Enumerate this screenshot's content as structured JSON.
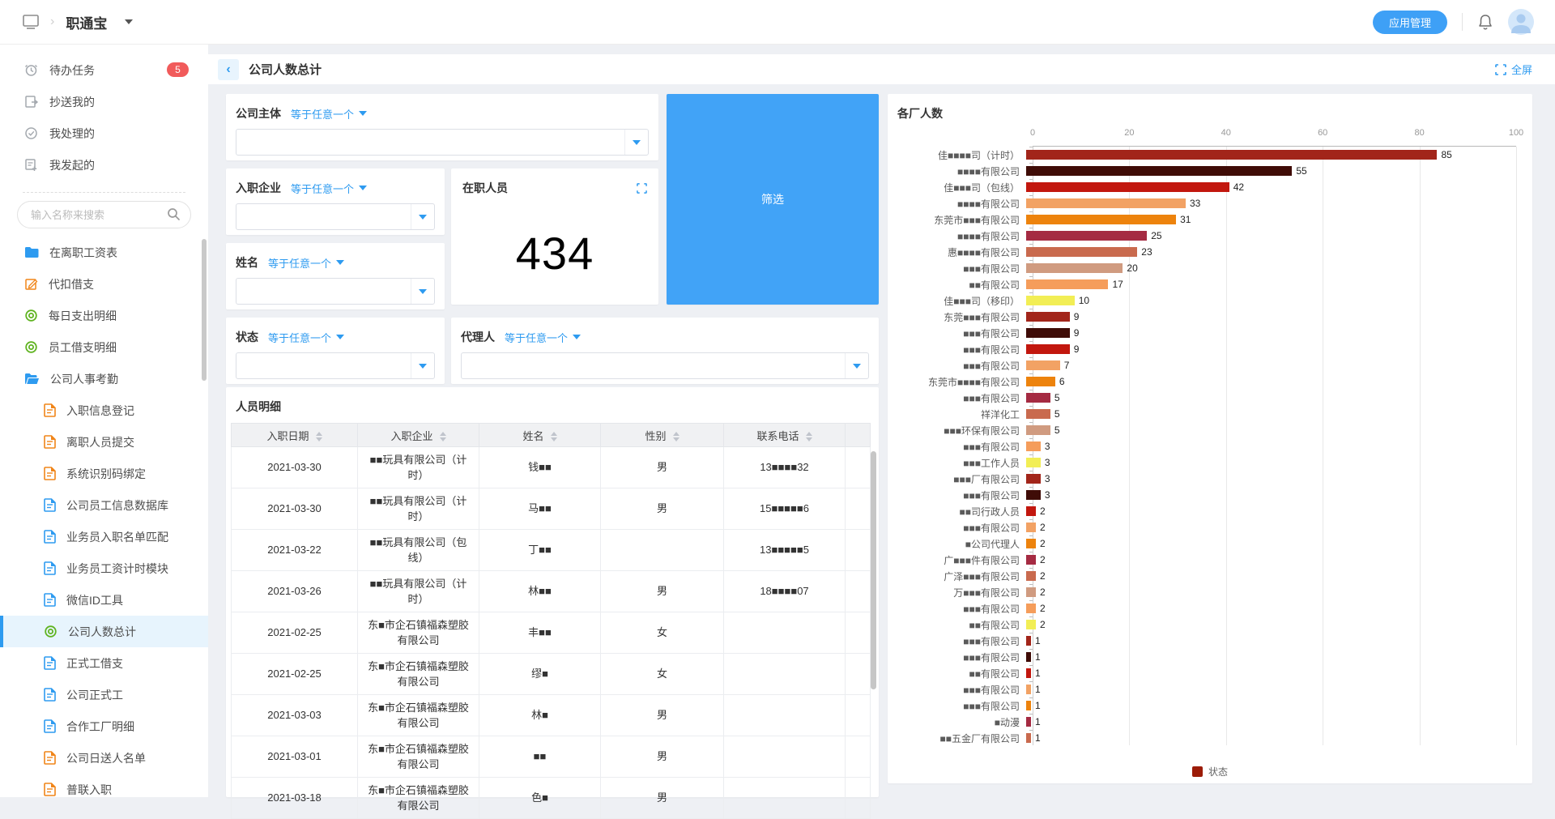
{
  "topbar": {
    "app_name": "职通宝",
    "app_manage_label": "应用管理"
  },
  "sidebar": {
    "search_placeholder": "输入名称来搜索",
    "quick_items": [
      {
        "label": "待办任务",
        "icon": "clock-icon",
        "badge": "5"
      },
      {
        "label": "抄送我的",
        "icon": "copy-doc-icon",
        "badge": ""
      },
      {
        "label": "我处理的",
        "icon": "check-circle-icon",
        "badge": ""
      },
      {
        "label": "我发起的",
        "icon": "doc-plus-icon",
        "badge": ""
      }
    ],
    "menu_items": [
      {
        "label": "在离职工资表",
        "icon": "folder-icon",
        "color": "#2e9bf0",
        "level": 0,
        "selected": false
      },
      {
        "label": "代扣借支",
        "icon": "form-pencil-icon",
        "color": "#f08519",
        "level": 0,
        "selected": false
      },
      {
        "label": "每日支出明细",
        "icon": "target-icon",
        "color": "#5fb320",
        "level": 0,
        "selected": false
      },
      {
        "label": "员工借支明细",
        "icon": "target-icon",
        "color": "#5fb320",
        "level": 0,
        "selected": false
      },
      {
        "label": "公司人事考勤",
        "icon": "folder-open-icon",
        "color": "#2e9bf0",
        "level": 0,
        "selected": false
      },
      {
        "label": "入职信息登记",
        "icon": "doc-icon",
        "color": "#f08519",
        "level": 1,
        "selected": false
      },
      {
        "label": "离职人员提交",
        "icon": "doc-icon",
        "color": "#f08519",
        "level": 1,
        "selected": false
      },
      {
        "label": "系统识别码绑定",
        "icon": "doc-icon",
        "color": "#f08519",
        "level": 1,
        "selected": false
      },
      {
        "label": "公司员工信息数据库",
        "icon": "doc-icon",
        "color": "#2e9bf0",
        "level": 1,
        "selected": false
      },
      {
        "label": "业务员入职名单匹配",
        "icon": "doc-icon",
        "color": "#2e9bf0",
        "level": 1,
        "selected": false
      },
      {
        "label": "业务员工资计时模块",
        "icon": "doc-icon",
        "color": "#2e9bf0",
        "level": 1,
        "selected": false
      },
      {
        "label": "微信ID工具",
        "icon": "doc-icon",
        "color": "#2e9bf0",
        "level": 1,
        "selected": false
      },
      {
        "label": "公司人数总计",
        "icon": "target-icon",
        "color": "#5fb320",
        "level": 1,
        "selected": true
      },
      {
        "label": "正式工借支",
        "icon": "doc-icon",
        "color": "#2e9bf0",
        "level": 1,
        "selected": false
      },
      {
        "label": "公司正式工",
        "icon": "doc-icon",
        "color": "#2e9bf0",
        "level": 1,
        "selected": false
      },
      {
        "label": "合作工厂明细",
        "icon": "doc-icon",
        "color": "#2e9bf0",
        "level": 1,
        "selected": false
      },
      {
        "label": "公司日送人名单",
        "icon": "doc-icon",
        "color": "#f08519",
        "level": 1,
        "selected": false
      },
      {
        "label": "普联入职",
        "icon": "doc-icon",
        "color": "#f08519",
        "level": 1,
        "selected": false
      }
    ]
  },
  "page": {
    "title": "公司人数总计",
    "fullscreen_label": "全屏"
  },
  "filters": {
    "operator_label": "等于任意一个",
    "fields": [
      "公司主体",
      "入职企业",
      "姓名",
      "状态",
      "代理人"
    ],
    "filter_button_label": "筛选"
  },
  "kpi": {
    "label": "在职人员",
    "value": "434"
  },
  "table": {
    "section_title": "人员明细",
    "columns": [
      "入职日期",
      "入职企业",
      "姓名",
      "性别",
      "联系电话"
    ],
    "rows": [
      [
        "2021-03-30",
        "■■玩具有限公司（计时）",
        "钱■■",
        "男",
        "13■■■■32"
      ],
      [
        "2021-03-30",
        "■■玩具有限公司（计时）",
        "马■■",
        "男",
        "15■■■■■6"
      ],
      [
        "2021-03-22",
        "■■玩具有限公司（包线）",
        "丁■■",
        "",
        "13■■■■■5"
      ],
      [
        "2021-03-26",
        "■■玩具有限公司（计时）",
        "林■■",
        "男",
        "18■■■■07"
      ],
      [
        "2021-02-25",
        "东■市企石镇福森塑胶有限公司",
        "丰■■",
        "女",
        ""
      ],
      [
        "2021-02-25",
        "东■市企石镇福森塑胶有限公司",
        "缪■",
        "女",
        ""
      ],
      [
        "2021-03-03",
        "东■市企石镇福森塑胶有限公司",
        "林■",
        "男",
        ""
      ],
      [
        "2021-03-01",
        "东■市企石镇福森塑胶有限公司",
        "■■",
        "男",
        ""
      ],
      [
        "2021-03-18",
        "东■市企石镇福森塑胶有限公司",
        "色■",
        "男",
        ""
      ]
    ]
  },
  "chart_data": {
    "type": "bar",
    "orientation": "horizontal",
    "title": "各厂人数",
    "xlim": [
      0,
      100
    ],
    "x_axis_ticks": [
      0,
      20,
      40,
      60,
      80,
      100
    ],
    "grid": true,
    "legend": [
      {
        "label": "状态",
        "color": "#9c1c08"
      }
    ],
    "categories": [
      "佳■■■■司（计时）",
      "■■■■有限公司",
      "佳■■■司（包线）",
      "■■■■有限公司",
      "东莞市■■■有限公司",
      "■■■■有限公司",
      "惠■■■■有限公司",
      "■■■有限公司",
      "■■有限公司",
      "佳■■■司（移印）",
      "东莞■■■有限公司",
      "■■■有限公司",
      "■■■有限公司",
      "■■■有限公司",
      "东莞市■■■■有限公司",
      "■■■有限公司",
      "祥洋化工",
      "■■■环保有限公司",
      "■■■有限公司",
      "■■■工作人员",
      "■■■厂有限公司",
      "■■■有限公司",
      "■■司行政人员",
      "■■■有限公司",
      "■公司代理人",
      "广■■■件有限公司",
      "广泽■■■有限公司",
      "万■■■有限公司",
      "■■■有限公司",
      "■■有限公司",
      "■■■有限公司",
      "■■■有限公司",
      "■■有限公司",
      "■■■有限公司",
      "■■■有限公司",
      "■动漫",
      "■■五金厂有限公司"
    ],
    "values": [
      85,
      55,
      42,
      33,
      31,
      25,
      23,
      20,
      17,
      10,
      9,
      9,
      9,
      7,
      6,
      5,
      5,
      5,
      3,
      3,
      3,
      3,
      2,
      2,
      2,
      2,
      2,
      2,
      2,
      2,
      1,
      1,
      1,
      1,
      1,
      1,
      1
    ],
    "bar_colors": [
      "#a2251a",
      "#3f0c07",
      "#c2170e",
      "#f2a264",
      "#ed830d",
      "#a52b42",
      "#c96a4e",
      "#d09b80",
      "#f59d5b",
      "#f2ee55",
      "#a2251a",
      "#3f0c07",
      "#c2170e",
      "#f2a264",
      "#ed830d",
      "#a52b42",
      "#c96a4e",
      "#d09b80",
      "#f59d5b",
      "#f2ee55",
      "#a2251a",
      "#3f0c07",
      "#c2170e",
      "#f2a264",
      "#ed830d",
      "#a52b42",
      "#c96a4e",
      "#d09b80",
      "#f59d5b",
      "#f2ee55",
      "#a2251a",
      "#3f0c07",
      "#c2170e",
      "#f2a264",
      "#ed830d",
      "#a52b42",
      "#c96a4e"
    ]
  }
}
